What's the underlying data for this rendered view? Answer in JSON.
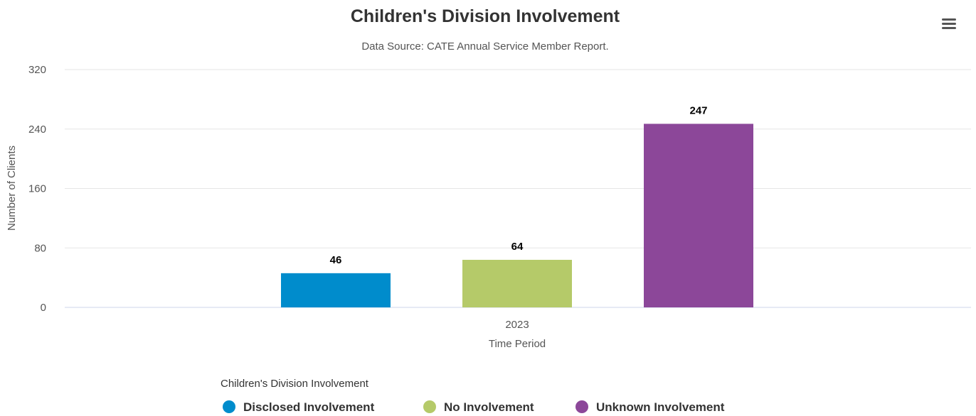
{
  "menu": {
    "icon": "hamburger-menu-icon"
  },
  "chart_data": {
    "type": "bar",
    "title": "Children's Division Involvement",
    "subtitle": "Data Source: CATE Annual Service Member Report.",
    "xlabel": "Time Period",
    "ylabel": "Number of Clients",
    "categories": [
      "2023"
    ],
    "ylim": [
      0,
      320
    ],
    "yticks": [
      0,
      80,
      160,
      240,
      320
    ],
    "grid": true,
    "legend": {
      "title": "Children's Division Involvement",
      "placement": "bottom-center"
    },
    "series": [
      {
        "name": "Disclosed Involvement",
        "values": [
          46
        ],
        "color": "#008ccc"
      },
      {
        "name": "No Involvement",
        "values": [
          64
        ],
        "color": "#b5ca69"
      },
      {
        "name": "Unknown Involvement",
        "values": [
          247
        ],
        "color": "#8c4799"
      }
    ],
    "data_labels": true
  }
}
